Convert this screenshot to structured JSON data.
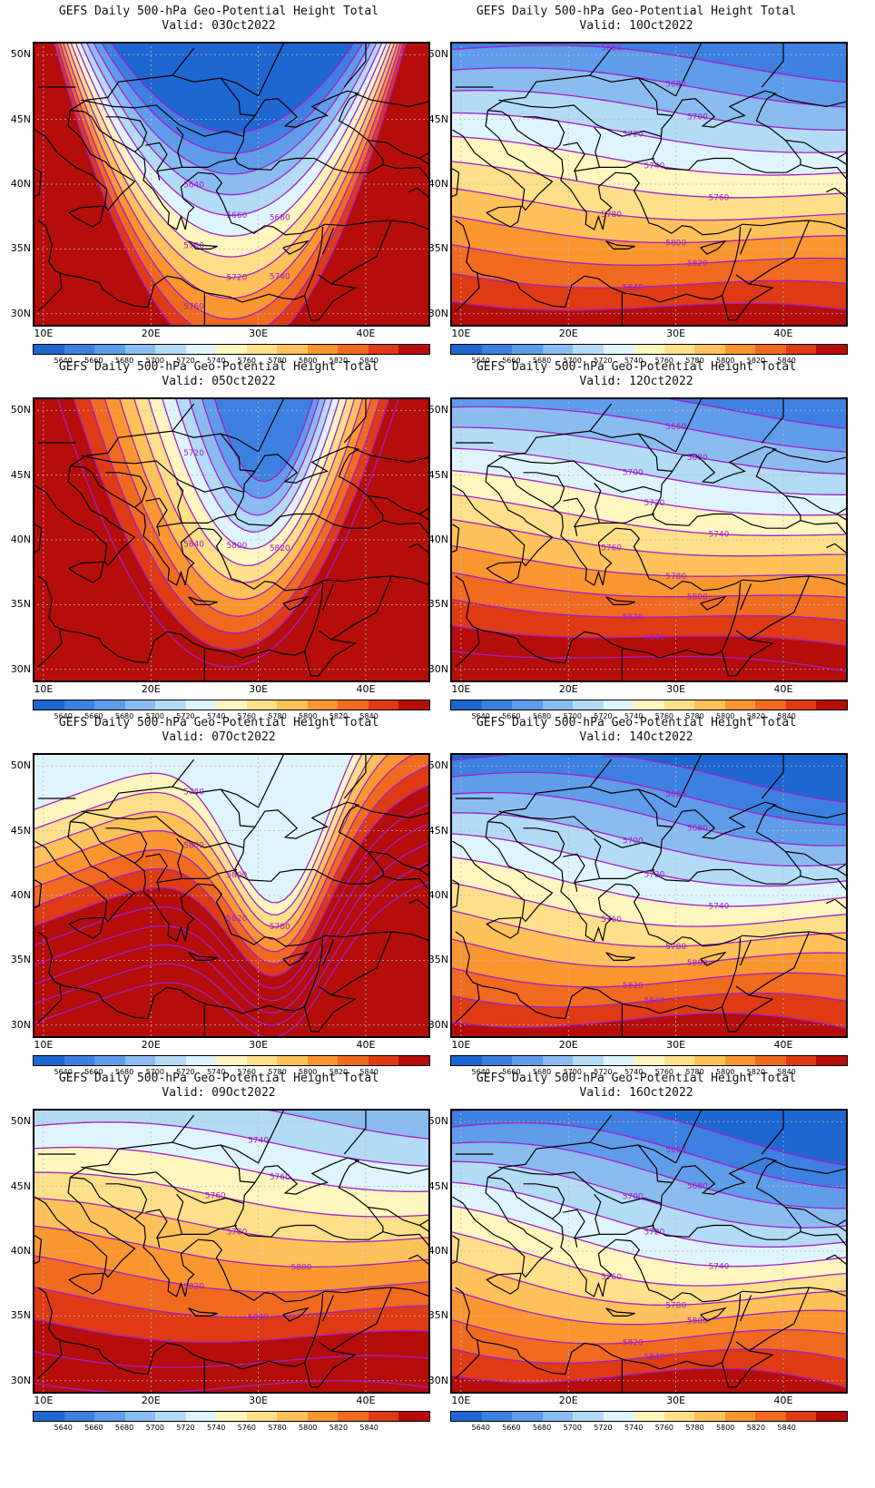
{
  "title": "GEFS Daily 500-hPa Geo-Potential Height Total",
  "valid_prefix": "Valid:",
  "lat_ticks": [
    "50N",
    "45N",
    "40N",
    "35N",
    "30N"
  ],
  "lon_ticks": [
    "10E",
    "20E",
    "30E",
    "40E"
  ],
  "colorbar": {
    "labels": [
      "5640",
      "5660",
      "5680",
      "5700",
      "5720",
      "5740",
      "5760",
      "5780",
      "5800",
      "5820",
      "5840"
    ],
    "colors": [
      "#1e66d0",
      "#3d80e0",
      "#5f9cea",
      "#8bbcf0",
      "#b3dbf6",
      "#dff5fd",
      "#fff6c0",
      "#ffe08a",
      "#ffc15a",
      "#fa9630",
      "#f06a20",
      "#de3a14",
      "#b40d0a"
    ]
  },
  "panels": [
    {
      "valid": "03Oct2022",
      "type": "trough-north",
      "labels": [
        "5640",
        "5660",
        "5680",
        "5700",
        "5720",
        "5740",
        "5760"
      ]
    },
    {
      "valid": "10Oct2022",
      "type": "zonal-shallow",
      "labels": [
        "5660",
        "5680",
        "5700",
        "5720",
        "5740",
        "5760",
        "5780",
        "5800",
        "5820",
        "5840"
      ]
    },
    {
      "valid": "05Oct2022",
      "type": "trough-east",
      "labels": [
        "5720",
        "5800",
        "5820",
        "5840"
      ]
    },
    {
      "valid": "12Oct2022",
      "type": "zonal-steep",
      "labels": [
        "5640",
        "5660",
        "5680",
        "5700",
        "5720",
        "5740",
        "5760",
        "5780",
        "5800",
        "5820",
        "5840"
      ]
    },
    {
      "valid": "07Oct2022",
      "type": "cutoff-low",
      "labels": [
        "5780",
        "5800",
        "5780",
        "5800",
        "5820"
      ]
    },
    {
      "valid": "14Oct2022",
      "type": "zonal-blue",
      "labels": [
        "5640",
        "5660",
        "5680",
        "5700",
        "5720",
        "5740",
        "5760",
        "5780",
        "5800",
        "5820",
        "5840"
      ]
    },
    {
      "valid": "09Oct2022",
      "type": "zonal-light",
      "labels": [
        "5720",
        "5740",
        "5760",
        "5760",
        "5780",
        "5800",
        "5820",
        "5840"
      ]
    },
    {
      "valid": "16Oct2022",
      "type": "zonal-south",
      "labels": [
        "5640",
        "5660",
        "5680",
        "5700",
        "5720",
        "5740",
        "5760",
        "5780",
        "5800",
        "5820",
        "5840"
      ]
    }
  ]
}
